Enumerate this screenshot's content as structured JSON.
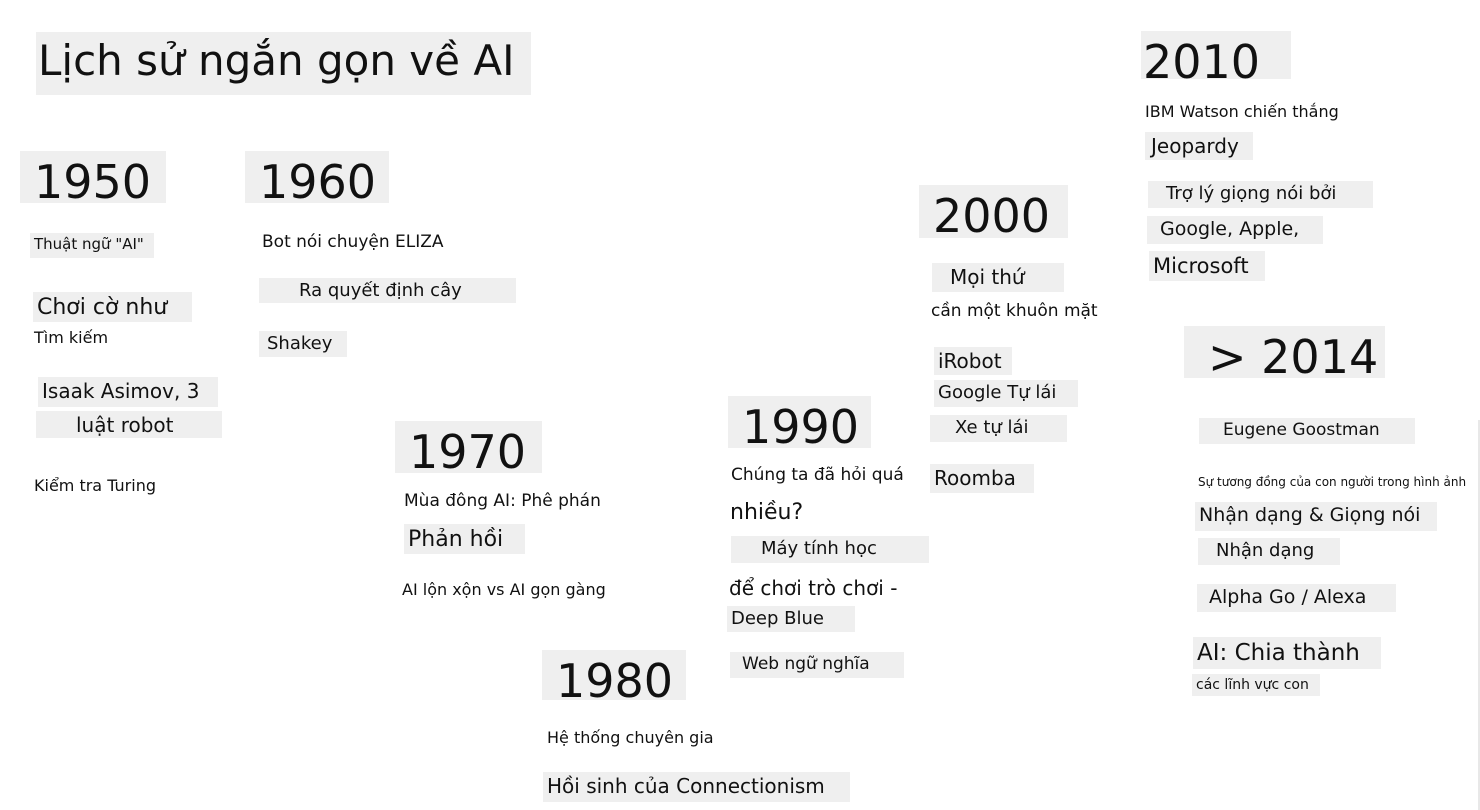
{
  "title": "Lịch sử ngắn gọn về AI",
  "eras": {
    "y1950": {
      "year": "1950",
      "items": [
        "Thuật ngữ \"AI\"",
        "Chơi cờ như",
        "Tìm kiếm",
        "Isaak Asimov, 3",
        "luật robot",
        "Kiểm tra Turing"
      ]
    },
    "y1960": {
      "year": "1960",
      "items": [
        "Bot nói chuyện ELIZA",
        "Ra quyết định cây",
        "Shakey"
      ]
    },
    "y1970": {
      "year": "1970",
      "items": [
        "Mùa đông AI: Phê phán",
        "Phản hồi",
        "AI lộn xộn vs AI gọn gàng"
      ]
    },
    "y1980": {
      "year": "1980",
      "items": [
        "Hệ thống chuyên gia",
        "Hồi sinh của Connectionism"
      ]
    },
    "y1990": {
      "year": "1990",
      "items": [
        "Chúng ta đã hỏi quá",
        "nhiều?",
        "Máy tính học",
        "để chơi trò chơi -",
        "Deep Blue",
        "Web ngữ nghĩa"
      ]
    },
    "y2000": {
      "year": "2000",
      "items": [
        "Mọi thứ",
        "cần một khuôn mặt",
        "iRobot",
        "Google Tự lái",
        "Xe tự lái",
        "Roomba"
      ]
    },
    "y2010": {
      "year": "2010",
      "items": [
        "IBM Watson chiến thắng",
        "Jeopardy",
        "Trợ lý giọng nói bởi",
        "Google, Apple,",
        "Microsoft"
      ]
    },
    "y2014": {
      "year": "> 2014",
      "items": [
        "Eugene Goostman",
        "Sự tương đồng của con người trong hình ảnh",
        "Nhận dạng & Giọng nói",
        "Nhận dạng",
        "Alpha Go / Alexa",
        "AI: Chia thành",
        "các lĩnh vực con"
      ]
    }
  }
}
